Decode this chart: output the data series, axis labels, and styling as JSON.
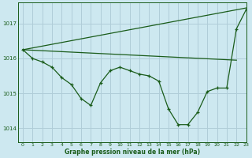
{
  "title": "Graphe pression niveau de la mer (hPa)",
  "background_color": "#cde8f0",
  "grid_color": "#b0cdd8",
  "line_color": "#1a5c1a",
  "marker_color": "#1a5c1a",
  "xlim": [
    -0.5,
    23
  ],
  "ylim": [
    1013.6,
    1017.6
  ],
  "yticks": [
    1014,
    1015,
    1016,
    1017
  ],
  "xticks": [
    0,
    1,
    2,
    3,
    4,
    5,
    6,
    7,
    8,
    9,
    10,
    11,
    12,
    13,
    14,
    15,
    16,
    17,
    18,
    19,
    20,
    21,
    22,
    23
  ],
  "series_rising": {
    "x": [
      0,
      23
    ],
    "y": [
      1016.25,
      1017.45
    ]
  },
  "series_flat": {
    "x": [
      0,
      22
    ],
    "y": [
      1016.25,
      1015.95
    ]
  },
  "series_markers": {
    "x": [
      0,
      1,
      2,
      3,
      4,
      5,
      6,
      7,
      8,
      9,
      10,
      11,
      12,
      13,
      14,
      15,
      16,
      17,
      18,
      19,
      20,
      21,
      22,
      23
    ],
    "y": [
      1016.25,
      1016.0,
      1015.9,
      1015.75,
      1015.45,
      1015.25,
      1014.85,
      1014.65,
      1015.3,
      1015.65,
      1015.75,
      1015.65,
      1015.55,
      1015.5,
      1015.35,
      1014.55,
      1014.1,
      1014.1,
      1014.45,
      1015.05,
      1015.15,
      1015.15,
      1016.85,
      1017.4
    ]
  }
}
